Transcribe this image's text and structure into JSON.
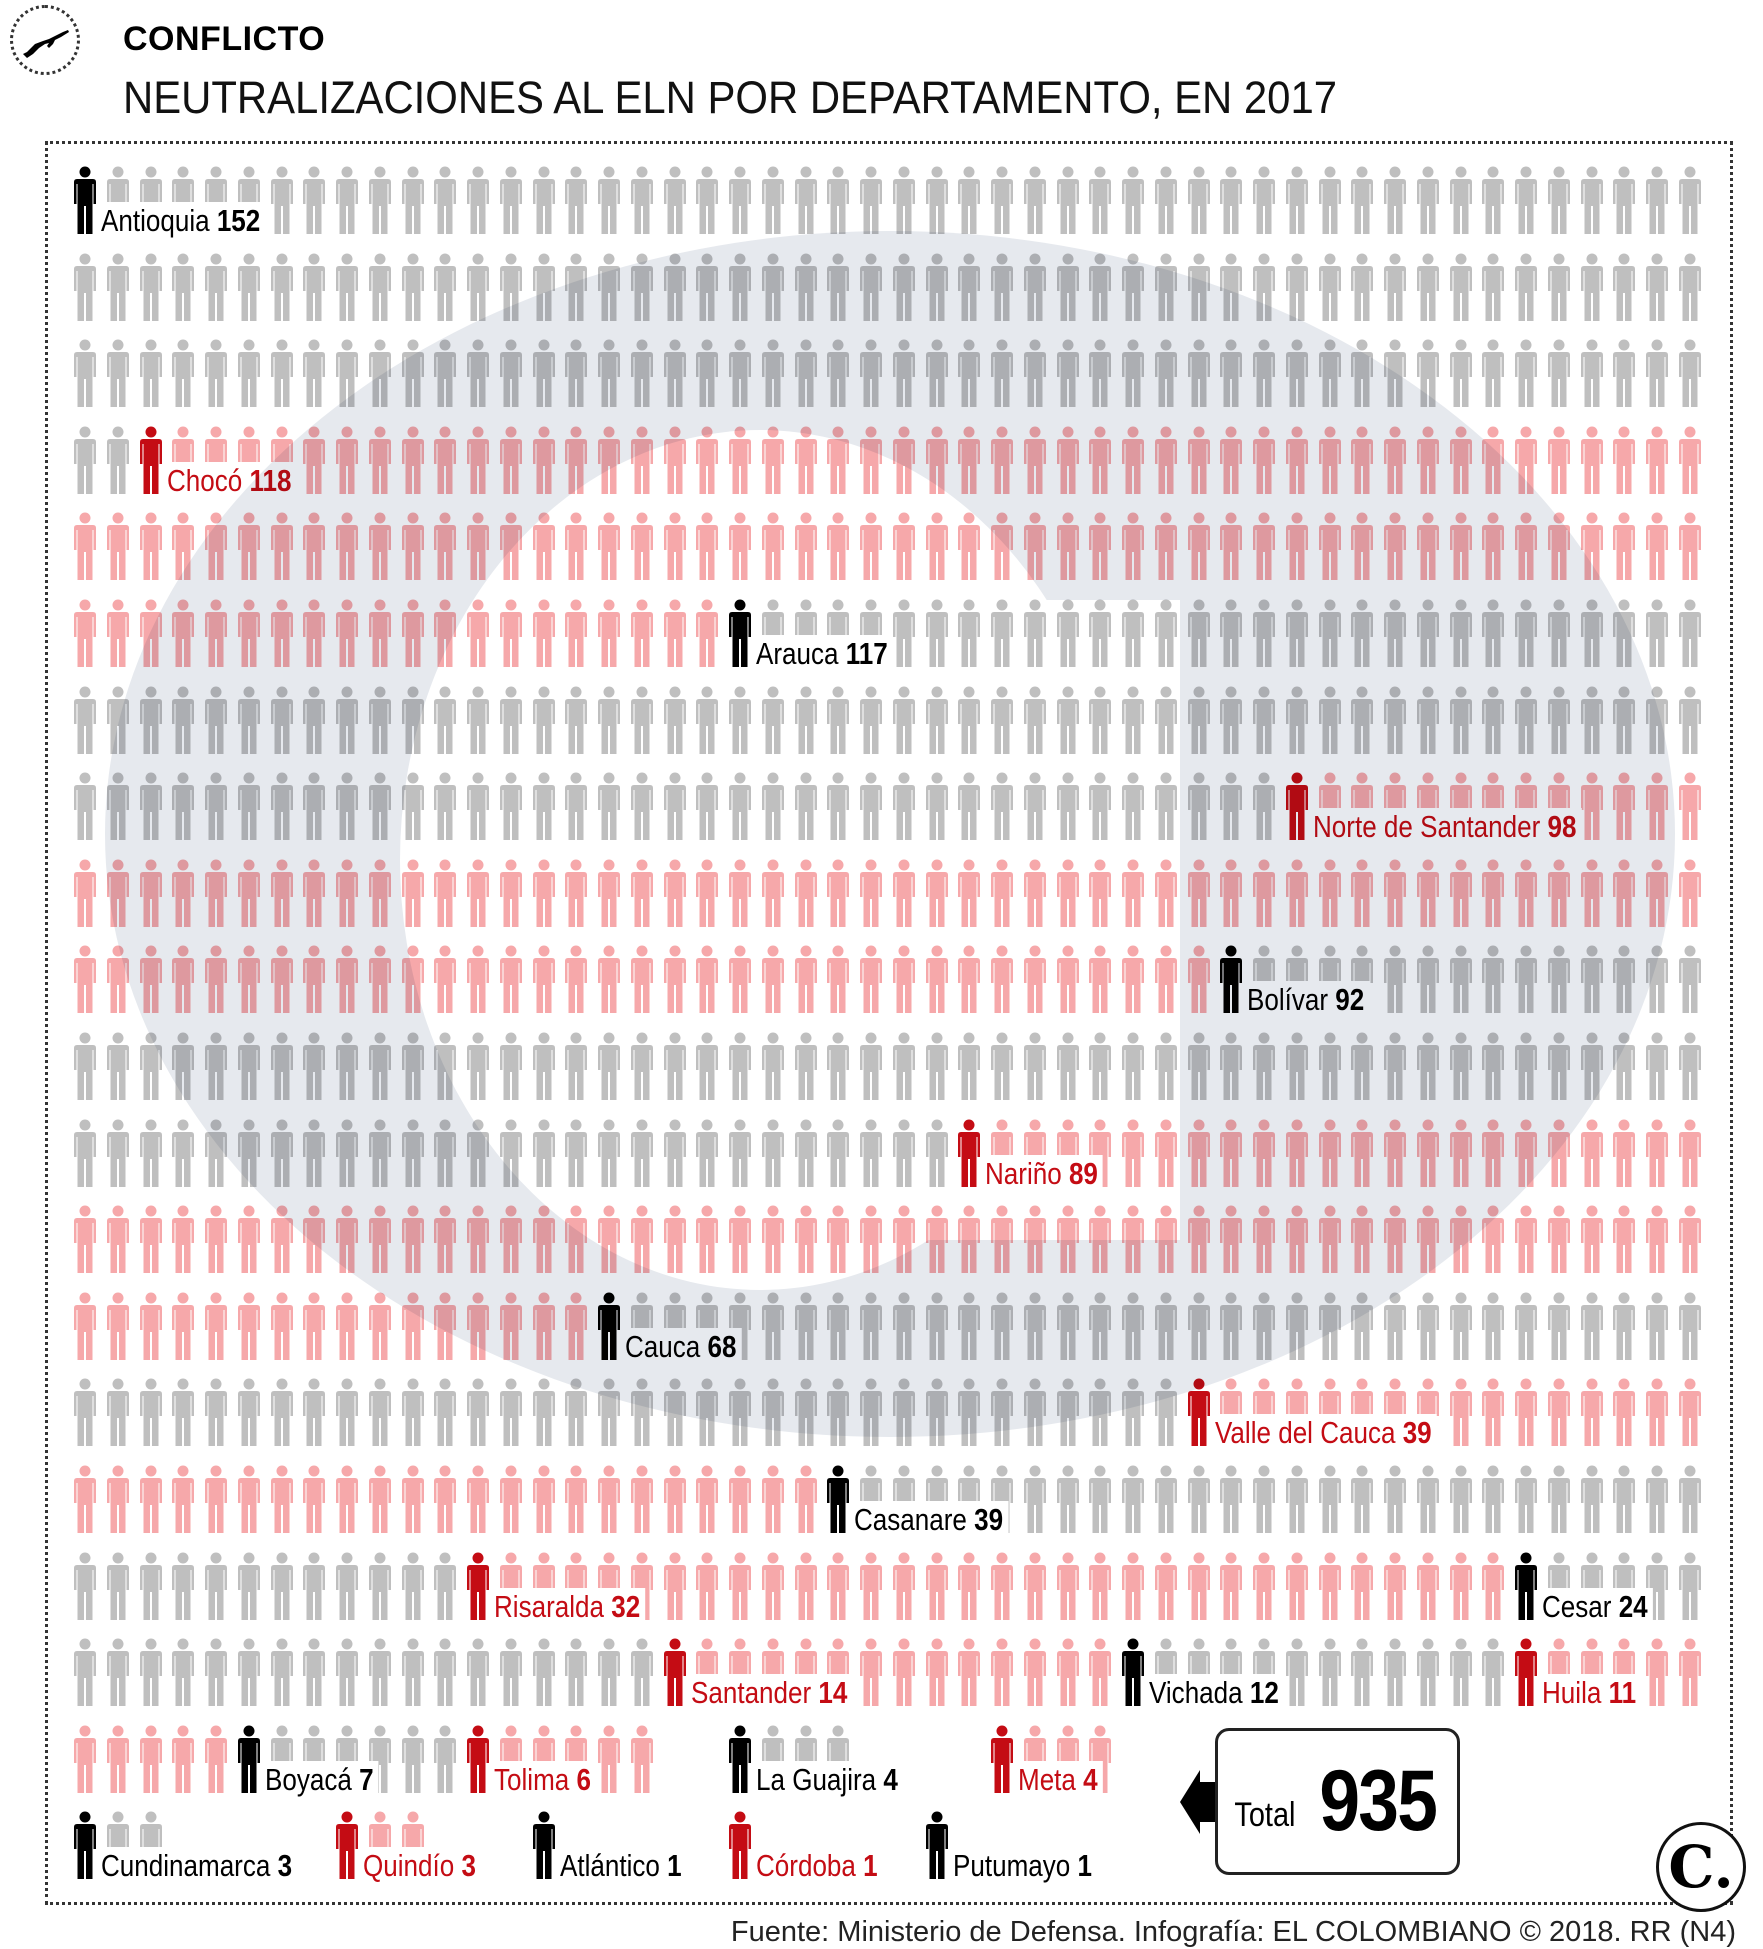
{
  "header": {
    "kicker": "CONFLICTO",
    "title": "NEUTRALIZACIONES AL ELN POR DEPARTAMENTO, EN 2017",
    "badge_icon": "rifle-icon"
  },
  "chart_data": {
    "type": "pictogram",
    "title": "NEUTRALIZACIONES AL ELN POR DEPARTAMENTO, EN 2017",
    "unit_icon": "person-icon",
    "icons_per_row": 50,
    "departments": [
      {
        "name": "Antioquia",
        "value": 152
      },
      {
        "name": "Chocó",
        "value": 118
      },
      {
        "name": "Arauca",
        "value": 117
      },
      {
        "name": "Norte de Santander",
        "value": 98
      },
      {
        "name": "Bolívar",
        "value": 92
      },
      {
        "name": "Nariño",
        "value": 89
      },
      {
        "name": "Cauca",
        "value": 68
      },
      {
        "name": "Valle del Cauca",
        "value": 39
      },
      {
        "name": "Casanare",
        "value": 39
      },
      {
        "name": "Risaralda",
        "value": 32
      },
      {
        "name": "Cesar",
        "value": 24
      },
      {
        "name": "Santander",
        "value": 14
      },
      {
        "name": "Vichada",
        "value": 12
      },
      {
        "name": "Huila",
        "value": 11
      },
      {
        "name": "Boyacá",
        "value": 7
      },
      {
        "name": "Tolima",
        "value": 6
      },
      {
        "name": "La Guajira",
        "value": 4
      },
      {
        "name": "Meta",
        "value": 4
      },
      {
        "name": "Cundinamarca",
        "value": 3
      },
      {
        "name": "Quindío",
        "value": 3
      },
      {
        "name": "Atlántico",
        "value": 1
      },
      {
        "name": "Córdoba",
        "value": 1
      },
      {
        "name": "Putumayo",
        "value": 1
      }
    ],
    "colors": {
      "group_a_leader": "#000000",
      "group_a_fill": "#bfbfbf",
      "group_b_leader": "#c40c14",
      "group_b_fill": "#f6a8aa",
      "background_logo": "#e6e9ee"
    }
  },
  "total": {
    "label": "Total",
    "value": "935"
  },
  "footer": {
    "source": "Fuente: Ministerio de Defensa. Infografía: EL COLOMBIANO © 2018. RR (N4)"
  },
  "brand": {
    "logo_text": "C."
  }
}
